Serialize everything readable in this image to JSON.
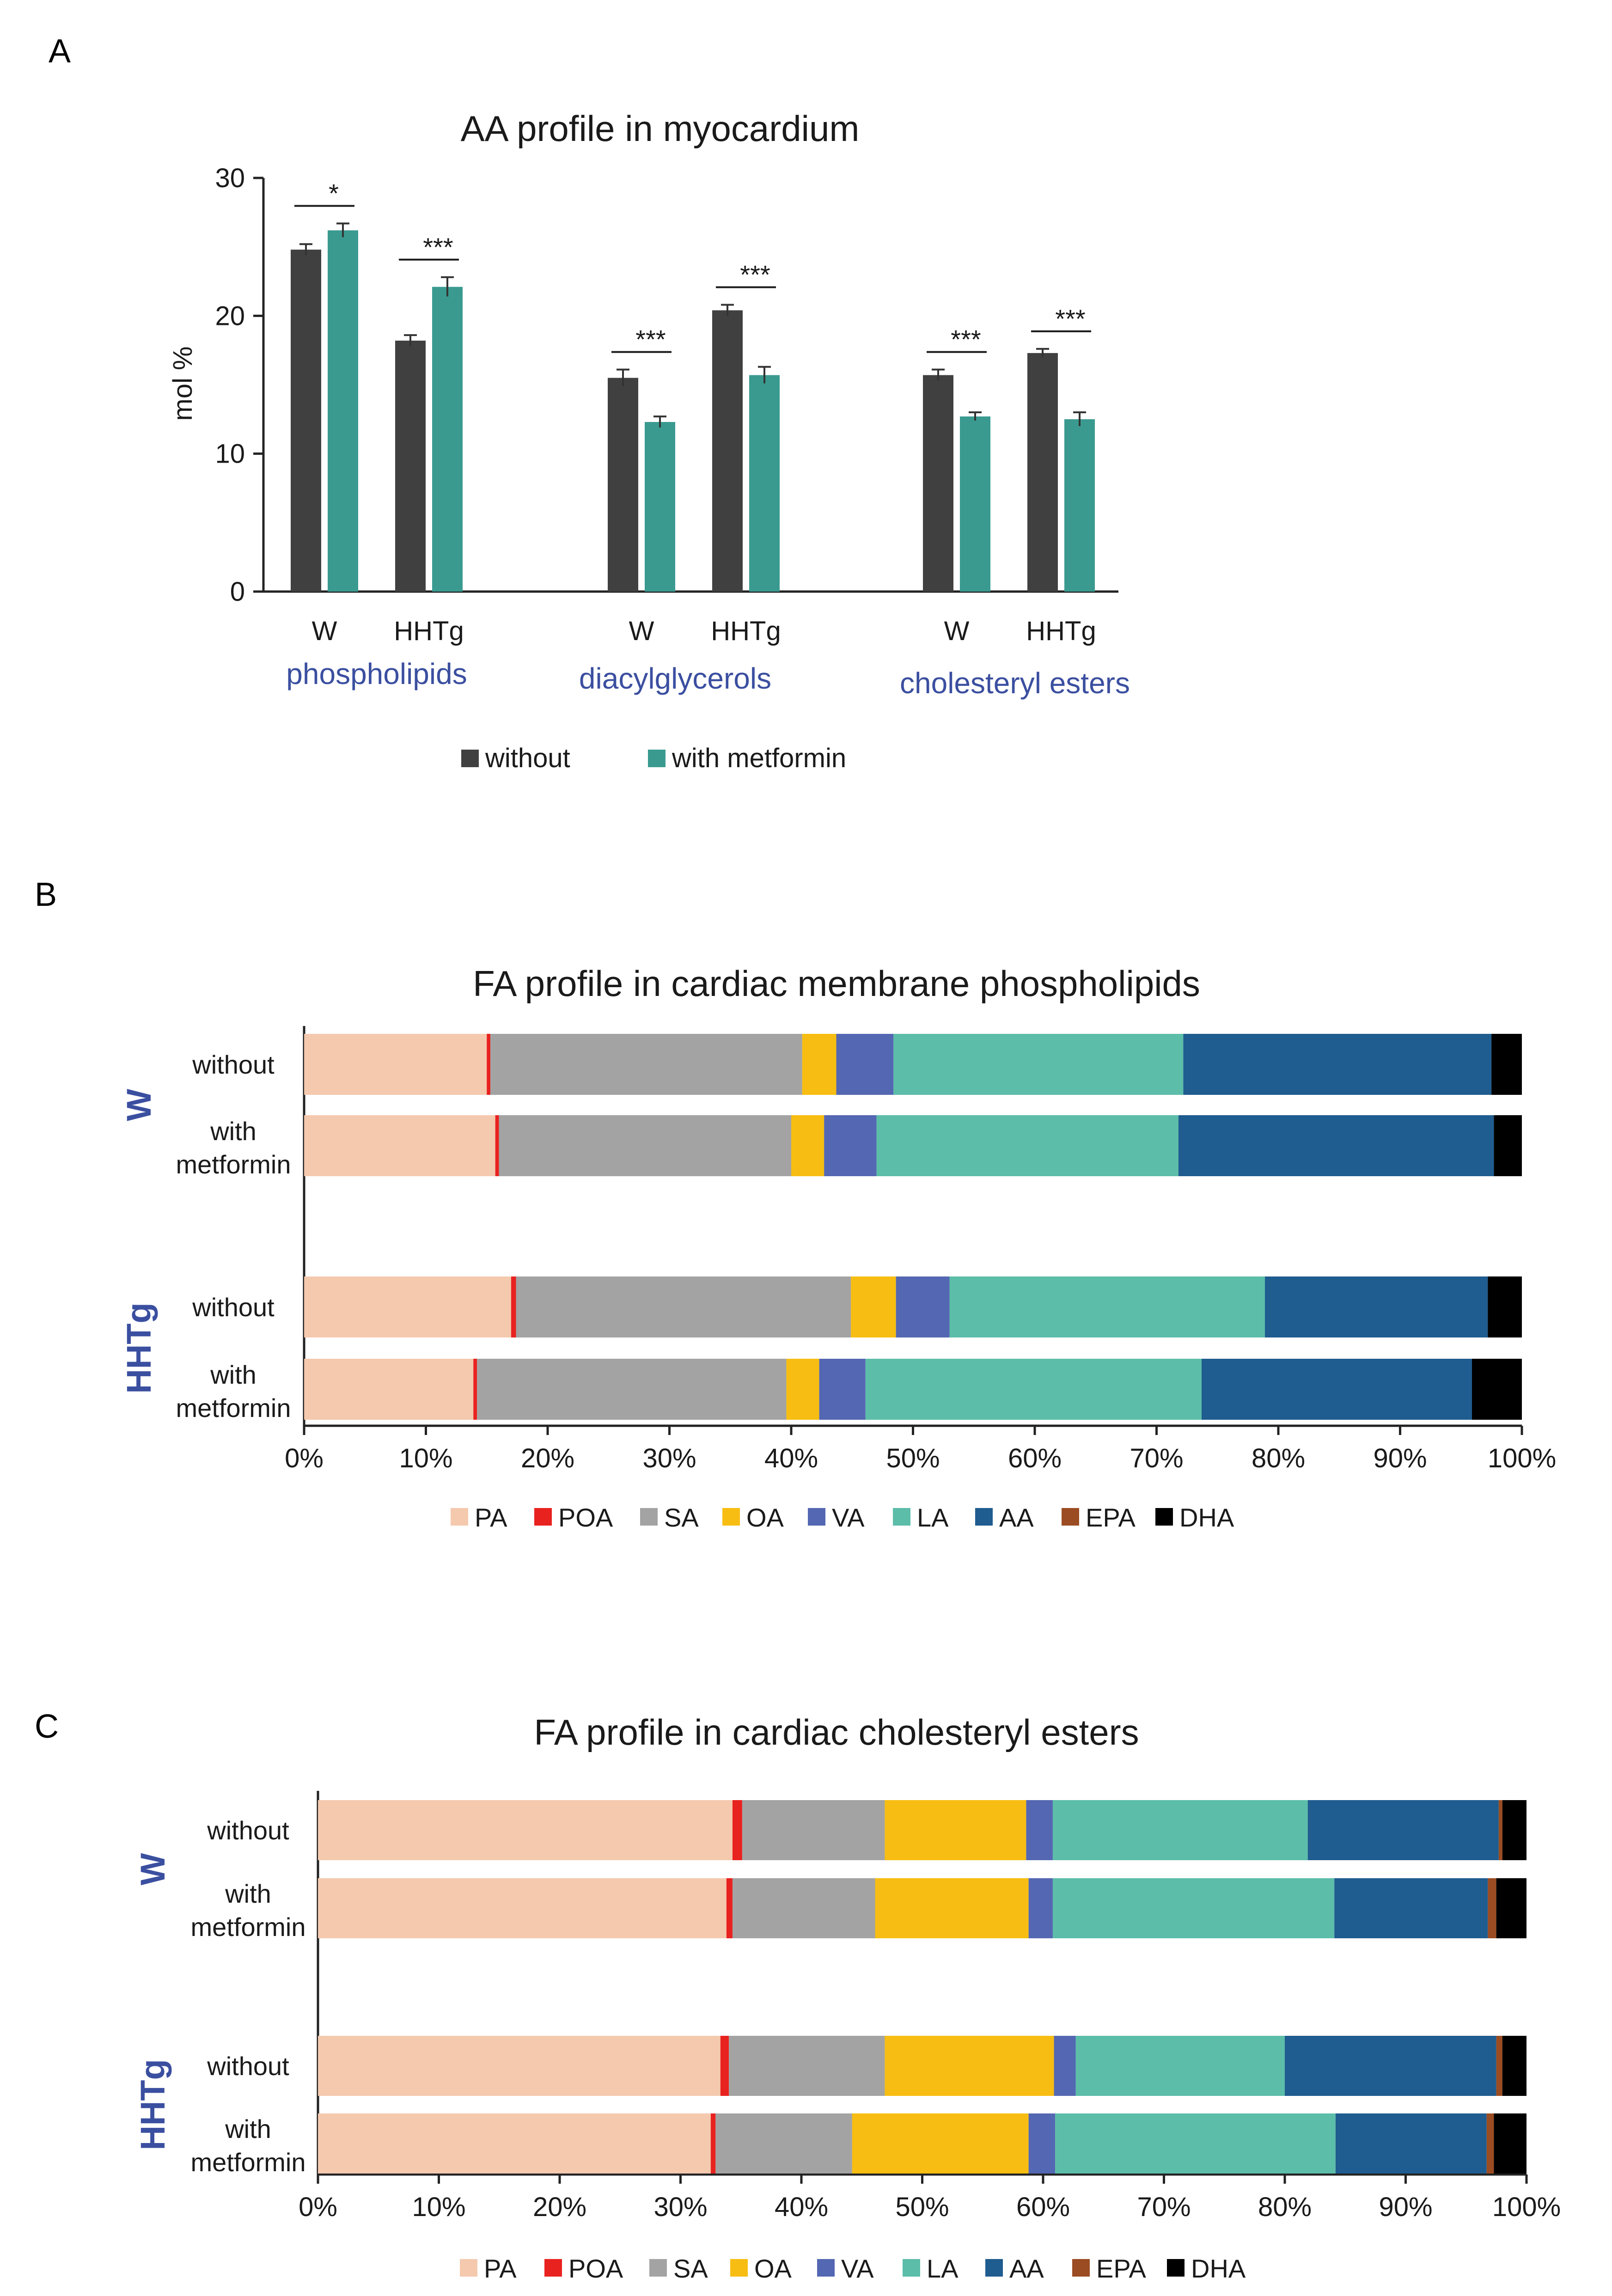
{
  "chart_data": [
    {
      "panel": "A",
      "type": "bar",
      "title": "AA profile in myocardium",
      "xlabel": "",
      "ylabel": "mol %",
      "ylim": [
        0,
        30
      ],
      "yticks": [
        0,
        10,
        20,
        30
      ],
      "grid": false,
      "legend_position": "bottom",
      "group_labels": [
        "phospholipids",
        "diacylglycerols",
        "cholesteryl esters"
      ],
      "categories": [
        "W",
        "HHTg",
        "W",
        "HHTg",
        "W",
        "HHTg"
      ],
      "series": [
        {
          "name": "without",
          "color": "#404040",
          "values": [
            24.8,
            18.2,
            15.5,
            20.4,
            15.7,
            17.3
          ],
          "errors": [
            0.4,
            0.4,
            0.6,
            0.4,
            0.4,
            0.3
          ]
        },
        {
          "name": "with metformin",
          "color": "#3a9a90",
          "values": [
            26.2,
            22.1,
            12.3,
            15.7,
            12.7,
            12.5
          ],
          "errors": [
            0.5,
            0.7,
            0.4,
            0.6,
            0.3,
            0.5
          ]
        }
      ],
      "significance": [
        "*",
        "***",
        "***",
        "***",
        "***",
        "***"
      ]
    },
    {
      "panel": "B",
      "type": "bar",
      "orientation": "horizontal-stacked-percent",
      "title": "FA profile in cardiac membrane phospholipids",
      "xlim": [
        0,
        100
      ],
      "xticks": [
        "0%",
        "10%",
        "20%",
        "30%",
        "40%",
        "50%",
        "60%",
        "70%",
        "80%",
        "90%",
        "100%"
      ],
      "legend_position": "bottom",
      "groups": [
        {
          "name": "W",
          "rows": [
            {
              "label": "without",
              "values": [
                15.0,
                0.3,
                25.6,
                2.8,
                4.7,
                23.8,
                25.3,
                0.0,
                2.5
              ]
            },
            {
              "label": "with metformin",
              "values": [
                15.7,
                0.3,
                24.0,
                2.7,
                4.3,
                24.8,
                25.9,
                0.0,
                2.3
              ]
            }
          ]
        },
        {
          "name": "HHTg",
          "rows": [
            {
              "label": "without",
              "values": [
                17.0,
                0.4,
                27.5,
                3.7,
                4.4,
                25.9,
                18.3,
                0.0,
                2.8
              ]
            },
            {
              "label": "with metformin",
              "values": [
                13.9,
                0.3,
                25.4,
                2.7,
                3.8,
                27.6,
                22.2,
                0.0,
                4.1
              ]
            }
          ]
        }
      ],
      "segments": [
        {
          "name": "PA",
          "color": "#f4c9ae"
        },
        {
          "name": "POA",
          "color": "#e8221f"
        },
        {
          "name": "SA",
          "color": "#a3a3a3"
        },
        {
          "name": "OA",
          "color": "#f7bd12"
        },
        {
          "name": "VA",
          "color": "#5467b2"
        },
        {
          "name": "LA",
          "color": "#5cbda9"
        },
        {
          "name": "AA",
          "color": "#1f5c8f"
        },
        {
          "name": "EPA",
          "color": "#9b4c22"
        },
        {
          "name": "DHA",
          "color": "#000000"
        }
      ]
    },
    {
      "panel": "C",
      "type": "bar",
      "orientation": "horizontal-stacked-percent",
      "title": "FA profile in cardiac cholesteryl esters",
      "xlim": [
        0,
        100
      ],
      "xticks": [
        "0%",
        "10%",
        "20%",
        "30%",
        "40%",
        "50%",
        "60%",
        "70%",
        "80%",
        "90%",
        "100%"
      ],
      "legend_position": "bottom",
      "groups": [
        {
          "name": "W",
          "rows": [
            {
              "label": "without",
              "values": [
                34.3,
                0.8,
                11.8,
                11.7,
                2.2,
                21.1,
                15.8,
                0.3,
                2.0
              ]
            },
            {
              "label": "with metformin",
              "values": [
                33.8,
                0.5,
                11.8,
                12.7,
                2.0,
                23.3,
                12.7,
                0.7,
                2.5
              ]
            }
          ]
        },
        {
          "name": "HHTg",
          "rows": [
            {
              "label": "without",
              "values": [
                33.3,
                0.7,
                12.9,
                14.0,
                1.8,
                17.3,
                17.5,
                0.5,
                2.0
              ]
            },
            {
              "label": "with metformin",
              "values": [
                32.5,
                0.4,
                11.3,
                14.6,
                2.2,
                23.2,
                12.5,
                0.6,
                2.7
              ]
            }
          ]
        }
      ],
      "segments": [
        {
          "name": "PA",
          "color": "#f4c9ae"
        },
        {
          "name": "POA",
          "color": "#e8221f"
        },
        {
          "name": "SA",
          "color": "#a3a3a3"
        },
        {
          "name": "OA",
          "color": "#f7bd12"
        },
        {
          "name": "VA",
          "color": "#5467b2"
        },
        {
          "name": "LA",
          "color": "#5cbda9"
        },
        {
          "name": "AA",
          "color": "#1f5c8f"
        },
        {
          "name": "EPA",
          "color": "#9b4c22"
        },
        {
          "name": "DHA",
          "color": "#000000"
        }
      ]
    }
  ],
  "colors": {
    "group_label": "#3b4fa0",
    "axis": "#222222"
  }
}
